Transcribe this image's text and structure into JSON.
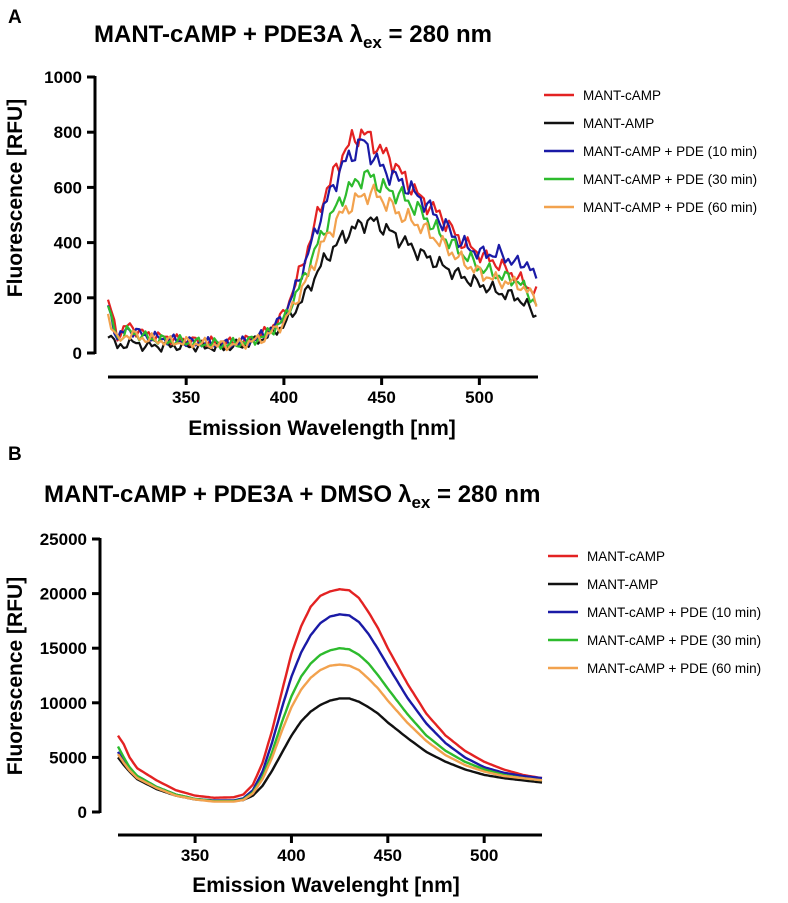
{
  "chart_data": [
    {
      "panel": "A",
      "type": "line",
      "title": "MANT-cAMP + PDE3A",
      "title_symbol": "λ",
      "title_sub": "ex",
      "title_suffix": " = 280 nm",
      "xlabel": "Emission Wavelength [nm]",
      "ylabel": "Fluorescence [RFU]",
      "xlim": [
        310,
        530
      ],
      "ylim": [
        0,
        1000
      ],
      "xticks": [
        350,
        400,
        450,
        500
      ],
      "yticks": [
        0,
        200,
        400,
        600,
        800,
        1000
      ],
      "noisy": true,
      "series": [
        {
          "name": "MANT-cAMP",
          "color": "#e32222",
          "x": [
            310,
            315,
            320,
            330,
            340,
            350,
            360,
            370,
            380,
            390,
            400,
            410,
            420,
            430,
            435,
            440,
            445,
            450,
            455,
            460,
            470,
            480,
            490,
            500,
            510,
            520,
            525,
            530
          ],
          "y": [
            190,
            60,
            100,
            65,
            55,
            45,
            40,
            35,
            42,
            70,
            140,
            330,
            560,
            720,
            770,
            800,
            770,
            730,
            700,
            650,
            560,
            500,
            410,
            360,
            320,
            270,
            240,
            220
          ]
        },
        {
          "name": "MANT-AMP",
          "color": "#111111",
          "x": [
            310,
            315,
            320,
            330,
            340,
            350,
            360,
            370,
            380,
            390,
            400,
            410,
            420,
            430,
            440,
            445,
            450,
            460,
            470,
            480,
            490,
            500,
            510,
            520,
            530
          ],
          "y": [
            80,
            15,
            40,
            25,
            25,
            25,
            22,
            20,
            30,
            55,
            100,
            200,
            330,
            420,
            470,
            480,
            460,
            410,
            360,
            320,
            280,
            250,
            220,
            200,
            130
          ]
        },
        {
          "name": "MANT-cAMP + PDE (10 min)",
          "color": "#1a1aa6",
          "x": [
            310,
            315,
            320,
            330,
            340,
            350,
            360,
            370,
            380,
            390,
            400,
            410,
            420,
            430,
            435,
            440,
            445,
            450,
            460,
            470,
            480,
            490,
            500,
            510,
            520,
            525,
            530
          ],
          "y": [
            170,
            50,
            90,
            60,
            50,
            40,
            35,
            30,
            40,
            65,
            130,
            310,
            520,
            680,
            720,
            770,
            720,
            670,
            620,
            560,
            480,
            400,
            360,
            360,
            320,
            330,
            240
          ]
        },
        {
          "name": "MANT-cAMP + PDE (30 min)",
          "color": "#2dbb2d",
          "x": [
            310,
            315,
            320,
            330,
            340,
            350,
            360,
            370,
            380,
            390,
            400,
            410,
            420,
            430,
            440,
            445,
            450,
            460,
            470,
            480,
            490,
            500,
            510,
            520,
            530
          ],
          "y": [
            160,
            50,
            80,
            55,
            45,
            40,
            35,
            30,
            38,
            60,
            120,
            270,
            440,
            570,
            640,
            640,
            600,
            570,
            510,
            430,
            370,
            310,
            280,
            260,
            170
          ]
        },
        {
          "name": "MANT-cAMP + PDE (60 min)",
          "color": "#f2a24e",
          "x": [
            310,
            315,
            320,
            330,
            340,
            350,
            360,
            370,
            380,
            390,
            400,
            410,
            420,
            430,
            440,
            445,
            450,
            460,
            470,
            480,
            490,
            500,
            510,
            520,
            530
          ],
          "y": [
            140,
            40,
            70,
            50,
            42,
            38,
            33,
            28,
            35,
            55,
            110,
            240,
            400,
            510,
            570,
            580,
            560,
            500,
            460,
            400,
            340,
            290,
            260,
            250,
            190
          ]
        }
      ]
    },
    {
      "panel": "B",
      "type": "line",
      "title": "MANT-cAMP + PDE3A + DMSO",
      "title_symbol": "λ",
      "title_sub": "ex",
      "title_suffix": " = 280 nm",
      "xlabel": "Emission Wavelenght [nm]",
      "ylabel": "Fluorescence [RFU]",
      "xlim": [
        310,
        530
      ],
      "ylim": [
        0,
        25000
      ],
      "xticks": [
        350,
        400,
        450,
        500
      ],
      "yticks": [
        0,
        5000,
        10000,
        15000,
        20000,
        25000
      ],
      "noisy": false,
      "series": [
        {
          "name": "MANT-cAMP",
          "color": "#e32222",
          "x": [
            310,
            313,
            316,
            320,
            330,
            340,
            350,
            360,
            370,
            375,
            380,
            385,
            390,
            395,
            400,
            405,
            410,
            415,
            420,
            425,
            430,
            435,
            440,
            445,
            450,
            460,
            470,
            480,
            490,
            500,
            510,
            520,
            530
          ],
          "y": [
            7000,
            6200,
            5000,
            4000,
            2900,
            2000,
            1500,
            1300,
            1350,
            1600,
            2500,
            4500,
            7500,
            11000,
            14500,
            17000,
            18800,
            19800,
            20200,
            20400,
            20300,
            19600,
            18300,
            16800,
            15000,
            11800,
            9000,
            7000,
            5600,
            4600,
            3900,
            3400,
            3100
          ]
        },
        {
          "name": "MANT-AMP",
          "color": "#111111",
          "x": [
            310,
            313,
            316,
            320,
            330,
            340,
            350,
            360,
            370,
            375,
            380,
            385,
            390,
            395,
            400,
            405,
            410,
            415,
            420,
            425,
            430,
            435,
            440,
            445,
            450,
            460,
            470,
            480,
            490,
            500,
            510,
            520,
            530
          ],
          "y": [
            5000,
            4300,
            3700,
            3000,
            2100,
            1500,
            1150,
            1000,
            1000,
            1100,
            1500,
            2400,
            3800,
            5400,
            7000,
            8300,
            9200,
            9800,
            10200,
            10400,
            10400,
            10100,
            9600,
            9000,
            8200,
            6800,
            5500,
            4600,
            3900,
            3400,
            3100,
            2900,
            2700
          ]
        },
        {
          "name": "MANT-cAMP + PDE (10 min)",
          "color": "#1a1aa6",
          "x": [
            310,
            313,
            316,
            320,
            330,
            340,
            350,
            360,
            370,
            375,
            380,
            385,
            390,
            395,
            400,
            405,
            410,
            415,
            420,
            425,
            430,
            435,
            440,
            445,
            450,
            460,
            470,
            480,
            490,
            500,
            510,
            520,
            530
          ],
          "y": [
            5500,
            4700,
            4000,
            3300,
            2300,
            1600,
            1200,
            1050,
            1050,
            1250,
            2000,
            3700,
            6400,
            9500,
            12400,
            14600,
            16200,
            17300,
            17900,
            18100,
            18000,
            17400,
            16300,
            14900,
            13400,
            10500,
            8100,
            6300,
            5000,
            4100,
            3600,
            3300,
            3100
          ]
        },
        {
          "name": "MANT-cAMP + PDE (30 min)",
          "color": "#2dbb2d",
          "x": [
            310,
            313,
            316,
            320,
            330,
            340,
            350,
            360,
            370,
            375,
            380,
            385,
            390,
            395,
            400,
            405,
            410,
            415,
            420,
            425,
            430,
            435,
            440,
            445,
            450,
            460,
            470,
            480,
            490,
            500,
            510,
            520,
            530
          ],
          "y": [
            6000,
            5000,
            4100,
            3300,
            2300,
            1600,
            1200,
            1000,
            1000,
            1150,
            1800,
            3200,
            5500,
            8200,
            10600,
            12400,
            13600,
            14400,
            14800,
            15000,
            14900,
            14400,
            13600,
            12500,
            11300,
            9000,
            7000,
            5600,
            4600,
            3900,
            3400,
            3100,
            2900
          ]
        },
        {
          "name": "MANT-cAMP + PDE (60 min)",
          "color": "#f2a24e",
          "x": [
            310,
            313,
            316,
            320,
            330,
            340,
            350,
            360,
            370,
            375,
            380,
            385,
            390,
            395,
            400,
            405,
            410,
            415,
            420,
            425,
            430,
            435,
            440,
            445,
            450,
            460,
            470,
            480,
            490,
            500,
            510,
            520,
            530
          ],
          "y": [
            5300,
            4500,
            3800,
            3100,
            2200,
            1500,
            1150,
            950,
            950,
            1100,
            1700,
            3000,
            5000,
            7400,
            9600,
            11200,
            12300,
            13000,
            13400,
            13500,
            13400,
            13000,
            12200,
            11300,
            10200,
            8200,
            6500,
            5200,
            4300,
            3700,
            3300,
            3100,
            2900
          ]
        }
      ]
    }
  ]
}
